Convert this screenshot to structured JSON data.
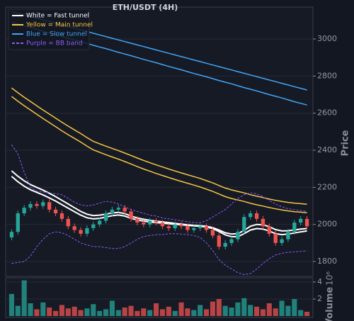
{
  "chart_data": {
    "type": "candlestick",
    "title": "ETH/USDT (4H)",
    "y_label": "Price",
    "up_color": "#26a69a",
    "down_color": "#ef5350",
    "grid": true,
    "legend": "upper left",
    "ylim": [
      1720,
      3172
    ],
    "yticks": [
      1800,
      2000,
      2200,
      2400,
      2600,
      2800,
      3000
    ],
    "open": [
      1930,
      1960,
      2060,
      2090,
      2110,
      2100,
      2120,
      2080,
      2060,
      2030,
      1990,
      1970,
      1950,
      1980,
      2000,
      2020,
      2060,
      2080,
      2090,
      2070,
      2030,
      2010,
      2000,
      2020,
      2010,
      1990,
      1980,
      2000,
      1990,
      1970,
      1980,
      1990,
      1970,
      1940,
      1880,
      1900,
      1920,
      1960,
      2040,
      2060,
      2030,
      1990,
      1950,
      1900,
      1920,
      1960,
      2010,
      2030
    ],
    "high": [
      1975,
      2075,
      2105,
      2125,
      2125,
      2135,
      2135,
      2095,
      2075,
      2045,
      2005,
      1985,
      1995,
      2015,
      2035,
      2075,
      2095,
      2105,
      2105,
      2085,
      2045,
      2025,
      2035,
      2035,
      2025,
      2005,
      2015,
      2015,
      2005,
      1995,
      2005,
      2005,
      1985,
      1955,
      1915,
      1935,
      1975,
      2055,
      2075,
      2075,
      2045,
      2005,
      1965,
      1935,
      1975,
      2025,
      2045,
      2045
    ],
    "low": [
      1915,
      1945,
      2045,
      2075,
      2085,
      2085,
      2065,
      2045,
      2015,
      1975,
      1955,
      1935,
      1935,
      1965,
      1985,
      2005,
      2045,
      2065,
      2055,
      2015,
      1995,
      1985,
      1985,
      1995,
      1975,
      1965,
      1965,
      1975,
      1955,
      1955,
      1965,
      1955,
      1925,
      1865,
      1865,
      1885,
      1905,
      1945,
      2025,
      2015,
      1975,
      1935,
      1885,
      1885,
      1905,
      1945,
      1995,
      1975
    ],
    "close": [
      1960,
      2060,
      2090,
      2110,
      2100,
      2120,
      2080,
      2060,
      2030,
      1990,
      1970,
      1950,
      1980,
      2000,
      2020,
      2060,
      2080,
      2090,
      2070,
      2030,
      2010,
      2000,
      2020,
      2010,
      1990,
      1980,
      2000,
      1990,
      1970,
      1980,
      1990,
      1970,
      1940,
      1880,
      1900,
      1920,
      1960,
      2040,
      2060,
      2030,
      1990,
      1950,
      1900,
      1920,
      1960,
      2010,
      2030,
      1990
    ],
    "lines": [
      {
        "name": "White = Fast tunnel",
        "color": "#ffffff",
        "dash": false,
        "width": 2,
        "upper": [
          2289,
          2260,
          2235,
          2215,
          2200,
          2185,
          2168,
          2150,
          2130,
          2110,
          2090,
          2070,
          2055,
          2048,
          2050,
          2056,
          2062,
          2065,
          2058,
          2045,
          2035,
          2028,
          2022,
          2018,
          2014,
          2010,
          2006,
          2002,
          1998,
          1995,
          1993,
          1990,
          1983,
          1970,
          1955,
          1948,
          1950,
          1968,
          1990,
          2000,
          1998,
          1988,
          1972,
          1965,
          1966,
          1970,
          1975,
          1978
        ],
        "lower": [
          2259,
          2230,
          2206,
          2187,
          2173,
          2159,
          2143,
          2126,
          2107,
          2088,
          2069,
          2050,
          2036,
          2030,
          2033,
          2040,
          2047,
          2051,
          2045,
          2033,
          2024,
          2018,
          2013,
          2010,
          2007,
          2004,
          2001,
          1998,
          1995,
          1992,
          1990,
          1986,
          1978,
          1962,
          1944,
          1934,
          1934,
          1950,
          1970,
          1978,
          1975,
          1965,
          1950,
          1945,
          1948,
          1954,
          1960,
          1965
        ]
      },
      {
        "name": "Yellow = Main tunnel",
        "color": "#f5c542",
        "dash": false,
        "width": 1.5,
        "upper": [
          2736,
          2710,
          2686,
          2663,
          2640,
          2617,
          2595,
          2573,
          2551,
          2530,
          2510,
          2490,
          2468,
          2448,
          2435,
          2422,
          2410,
          2398,
          2385,
          2372,
          2358,
          2345,
          2333,
          2321,
          2310,
          2299,
          2288,
          2278,
          2268,
          2258,
          2248,
          2236,
          2224,
          2210,
          2196,
          2186,
          2178,
          2170,
          2160,
          2152,
          2145,
          2137,
          2130,
          2124,
          2119,
          2115,
          2112,
          2109
        ],
        "lower": [
          2690,
          2664,
          2640,
          2617,
          2594,
          2571,
          2549,
          2527,
          2505,
          2484,
          2464,
          2444,
          2422,
          2402,
          2389,
          2376,
          2364,
          2352,
          2339,
          2326,
          2312,
          2299,
          2287,
          2275,
          2264,
          2253,
          2242,
          2232,
          2222,
          2212,
          2202,
          2190,
          2178,
          2164,
          2150,
          2140,
          2132,
          2124,
          2114,
          2106,
          2099,
          2091,
          2084,
          2078,
          2073,
          2069,
          2066,
          2063
        ]
      },
      {
        "name": "Blue = Slow tunnel",
        "color": "#42a5f5",
        "dash": false,
        "width": 1.5,
        "upper": [
          3148,
          3139,
          3130,
          3121,
          3112,
          3103,
          3094,
          3085,
          3076,
          3067,
          3058,
          3049,
          3040,
          3031,
          3022,
          3013,
          3004,
          2995,
          2986,
          2977,
          2968,
          2959,
          2950,
          2941,
          2932,
          2923,
          2914,
          2905,
          2896,
          2887,
          2878,
          2869,
          2860,
          2851,
          2842,
          2833,
          2824,
          2815,
          2806,
          2797,
          2788,
          2779,
          2770,
          2761,
          2752,
          2743,
          2734,
          2725
        ],
        "lower": [
          3090,
          3080,
          3071,
          3062,
          3052,
          3042,
          3033,
          3024,
          3014,
          3004,
          2995,
          2986,
          2976,
          2966,
          2957,
          2948,
          2938,
          2928,
          2919,
          2910,
          2900,
          2890,
          2881,
          2872,
          2862,
          2852,
          2843,
          2834,
          2824,
          2814,
          2805,
          2796,
          2786,
          2776,
          2767,
          2758,
          2748,
          2738,
          2729,
          2720,
          2710,
          2700,
          2691,
          2682,
          2672,
          2662,
          2653,
          2644
        ]
      },
      {
        "name": "Purple = BB band",
        "color": "#8a5cf5",
        "dash": true,
        "width": 1,
        "upper": [
          2430,
          2380,
          2280,
          2200,
          2180,
          2175,
          2170,
          2165,
          2160,
          2140,
          2120,
          2105,
          2100,
          2105,
          2115,
          2125,
          2120,
          2110,
          2095,
          2080,
          2070,
          2060,
          2050,
          2045,
          2035,
          2030,
          2025,
          2020,
          2015,
          2010,
          2010,
          2020,
          2040,
          2060,
          2080,
          2110,
          2140,
          2160,
          2170,
          2165,
          2150,
          2130,
          2110,
          2095,
          2085,
          2080,
          2075,
          2070
        ],
        "lower": [
          1790,
          1795,
          1800,
          1830,
          1880,
          1920,
          1950,
          1960,
          1955,
          1940,
          1920,
          1900,
          1890,
          1880,
          1880,
          1875,
          1870,
          1870,
          1880,
          1900,
          1920,
          1935,
          1940,
          1945,
          1945,
          1950,
          1950,
          1948,
          1945,
          1940,
          1930,
          1900,
          1860,
          1810,
          1780,
          1760,
          1740,
          1730,
          1735,
          1760,
          1790,
          1815,
          1835,
          1845,
          1850,
          1852,
          1855,
          1858
        ]
      }
    ],
    "volume": {
      "label": "Volume",
      "offset": "10⁶",
      "ylim": [
        0,
        4.5
      ],
      "yticks": [
        2,
        4
      ],
      "values": [
        2.6,
        1.2,
        4.2,
        1.5,
        0.8,
        1.6,
        1.0,
        0.6,
        1.3,
        0.9,
        1.1,
        0.7,
        0.9,
        1.4,
        0.6,
        0.8,
        1.8,
        0.7,
        1.0,
        1.2,
        0.6,
        0.9,
        0.7,
        1.5,
        0.8,
        1.1,
        0.6,
        1.6,
        0.9,
        0.7,
        1.3,
        0.8,
        1.7,
        2.0,
        1.2,
        1.0,
        1.6,
        2.1,
        1.3,
        1.1,
        0.8,
        1.5,
        0.9,
        1.8,
        1.2,
        2.0,
        0.7,
        0.5
      ]
    }
  }
}
